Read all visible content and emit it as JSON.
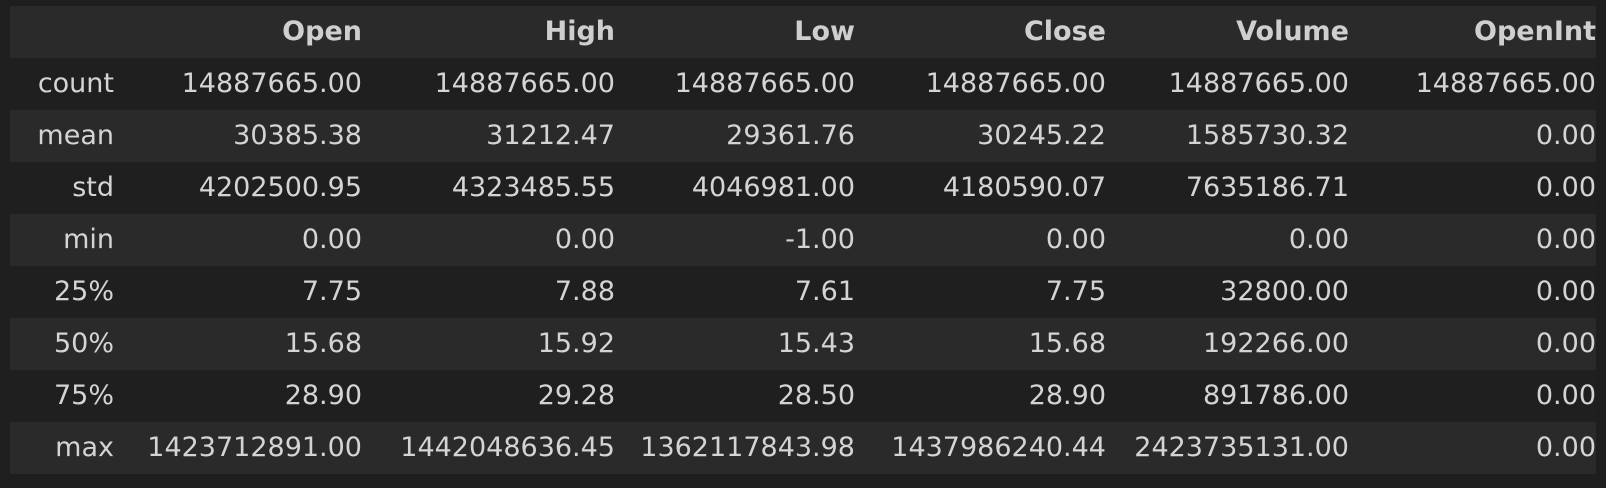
{
  "table": {
    "index_header": "",
    "columns": [
      "Open",
      "High",
      "Low",
      "Close",
      "Volume",
      "OpenInt"
    ],
    "rows": [
      {
        "label": "count",
        "values": [
          "14887665.00",
          "14887665.00",
          "14887665.00",
          "14887665.00",
          "14887665.00",
          "14887665.00"
        ]
      },
      {
        "label": "mean",
        "values": [
          "30385.38",
          "31212.47",
          "29361.76",
          "30245.22",
          "1585730.32",
          "0.00"
        ]
      },
      {
        "label": "std",
        "values": [
          "4202500.95",
          "4323485.55",
          "4046981.00",
          "4180590.07",
          "7635186.71",
          "0.00"
        ]
      },
      {
        "label": "min",
        "values": [
          "0.00",
          "0.00",
          "-1.00",
          "0.00",
          "0.00",
          "0.00"
        ]
      },
      {
        "label": "25%",
        "values": [
          "7.75",
          "7.88",
          "7.61",
          "7.75",
          "32800.00",
          "0.00"
        ]
      },
      {
        "label": "50%",
        "values": [
          "15.68",
          "15.92",
          "15.43",
          "15.68",
          "192266.00",
          "0.00"
        ]
      },
      {
        "label": "75%",
        "values": [
          "28.90",
          "29.28",
          "28.50",
          "28.90",
          "891786.00",
          "0.00"
        ]
      },
      {
        "label": "max",
        "values": [
          "1423712891.00",
          "1442048636.45",
          "1362117843.98",
          "1437986240.44",
          "2423735131.00",
          "0.00"
        ]
      }
    ]
  },
  "colors": {
    "background": "#1e1e1e",
    "row_stripe": "#2a2a2a",
    "row_plain": "#1f1f1f",
    "text": "#d4d4d4"
  }
}
